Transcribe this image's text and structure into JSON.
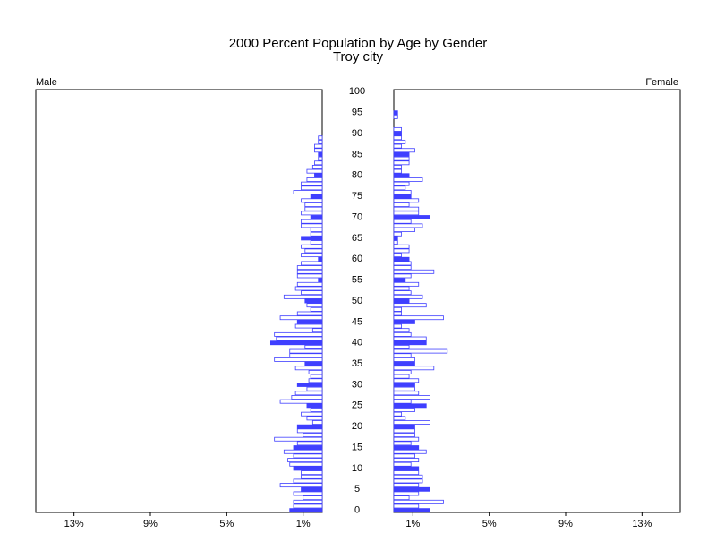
{
  "chart_data": {
    "type": "pyramid",
    "title": "2000 Percent Population by Age by Gender",
    "subtitle": "Troy city",
    "categories": [
      0,
      null,
      null,
      null,
      null,
      5,
      null,
      null,
      null,
      null,
      10,
      null,
      null,
      null,
      null,
      15,
      null,
      null,
      null,
      null,
      20,
      null,
      null,
      null,
      null,
      25,
      null,
      null,
      null,
      null,
      30,
      null,
      null,
      null,
      null,
      35,
      null,
      null,
      null,
      null,
      40,
      null,
      null,
      null,
      null,
      45,
      null,
      null,
      null,
      null,
      50,
      null,
      null,
      null,
      null,
      55,
      null,
      null,
      null,
      null,
      60,
      null,
      null,
      null,
      null,
      65,
      null,
      null,
      null,
      null,
      70,
      null,
      null,
      null,
      null,
      75,
      null,
      null,
      null,
      null,
      80,
      null,
      null,
      null,
      null,
      85,
      null,
      null,
      null,
      null,
      90,
      null,
      null,
      null,
      null,
      95,
      null,
      null,
      null,
      null,
      100
    ],
    "series": [
      {
        "name": "Male",
        "color": "#3f3fff",
        "values": [
          1.7,
          1.5,
          1.5,
          1.0,
          1.5,
          1.1,
          2.2,
          1.5,
          1.1,
          1.1,
          1.5,
          1.7,
          1.8,
          1.5,
          2.0,
          1.5,
          1.3,
          2.5,
          1.0,
          1.3,
          1.3,
          0.5,
          0.8,
          1.1,
          0.6,
          0.8,
          2.2,
          1.6,
          1.4,
          0.8,
          1.3,
          0.7,
          0.6,
          0.7,
          1.4,
          0.9,
          2.5,
          1.7,
          1.7,
          0.9,
          2.7,
          2.4,
          2.5,
          0.5,
          1.4,
          1.3,
          2.2,
          1.3,
          0.6,
          0.8,
          0.9,
          2.0,
          1.1,
          1.4,
          1.3,
          0.2,
          1.3,
          1.3,
          1.3,
          1.1,
          0.2,
          1.1,
          0.9,
          1.1,
          0.6,
          1.1,
          0.6,
          0.6,
          1.1,
          1.1,
          0.6,
          1.1,
          0.9,
          0.9,
          1.1,
          0.6,
          1.5,
          1.1,
          1.1,
          0.8,
          0.4,
          0.8,
          0.5,
          0.4,
          0.2,
          0.2,
          0.4,
          0.4,
          0.2,
          0.2,
          0,
          0,
          0,
          0,
          0,
          0,
          0,
          0,
          0,
          0,
          0
        ]
      },
      {
        "name": "Female",
        "color": "#3f3fff",
        "values": [
          1.9,
          1.3,
          2.6,
          0.8,
          1.3,
          1.9,
          1.3,
          1.5,
          1.5,
          1.3,
          1.3,
          0.9,
          1.3,
          1.1,
          1.7,
          1.3,
          0.9,
          1.3,
          1.1,
          1.1,
          1.1,
          1.9,
          0.6,
          0.4,
          1.1,
          1.7,
          0.9,
          1.9,
          1.3,
          1.1,
          1.1,
          1.3,
          0.8,
          0.9,
          2.1,
          1.1,
          1.1,
          0.9,
          2.8,
          0.8,
          1.7,
          1.7,
          0.9,
          0.8,
          0.4,
          1.1,
          2.6,
          0.4,
          0.4,
          1.7,
          0.8,
          1.5,
          0.9,
          0.8,
          1.3,
          0.6,
          0.9,
          2.1,
          0.9,
          0.9,
          0.8,
          0.4,
          0.8,
          0.8,
          0.2,
          0.2,
          0.4,
          1.1,
          1.5,
          0.9,
          1.9,
          1.3,
          1.3,
          0.8,
          1.3,
          0.9,
          0.9,
          0.6,
          0.8,
          1.5,
          0.8,
          0.4,
          0.4,
          0.8,
          0.8,
          0.8,
          1.1,
          0.4,
          0.6,
          0.4,
          0.4,
          0.4,
          0,
          0,
          0.2,
          0.2,
          0,
          0,
          0,
          0,
          0
        ]
      }
    ],
    "xlim": [
      0,
      15
    ],
    "xticks": [
      {
        "value": 1,
        "label": "1%"
      },
      {
        "value": 5,
        "label": "5%"
      },
      {
        "value": 9,
        "label": "9%"
      },
      {
        "value": 13,
        "label": "13%"
      }
    ],
    "fill_every": 5
  }
}
